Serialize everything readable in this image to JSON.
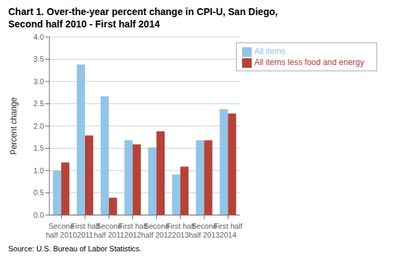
{
  "chart_data": {
    "type": "bar",
    "title": "Chart 1. Over-the-year percent change in CPI-U, San Diego,",
    "subtitle": "Second half 2010 - First half 2014",
    "source": "Source: U.S. Bureau of Labor Statistics.",
    "categories": [
      "Second\nhalf 2010",
      "First half\n2011",
      "Second\nhalf 2011",
      "First half\n2012",
      "Second\nhalf 2012",
      "First half\n2013",
      "Second\nhalf 2013",
      "First half\n2014"
    ],
    "series": [
      {
        "name": "All items",
        "color": "#92C5E8",
        "values": [
          1.0,
          3.38,
          2.67,
          1.68,
          1.52,
          0.91,
          1.68,
          2.38
        ]
      },
      {
        "name": "All items less food and energy",
        "color": "#B5433A",
        "values": [
          1.18,
          1.79,
          0.39,
          1.59,
          1.88,
          1.09,
          1.68,
          2.28
        ]
      }
    ],
    "ylabel": "Percent change",
    "ylim": [
      0.0,
      4.0
    ],
    "yticks": [
      {
        "value": 0,
        "label": "0.0"
      },
      0.5,
      {
        "value": 1,
        "label": "1.0"
      },
      1.5,
      {
        "value": 2,
        "label": "2.0"
      },
      2.5,
      {
        "value": 3,
        "label": "3.0"
      },
      3.5,
      {
        "value": 4,
        "label": "4.0"
      }
    ],
    "grid": true,
    "legend": "upper right"
  }
}
